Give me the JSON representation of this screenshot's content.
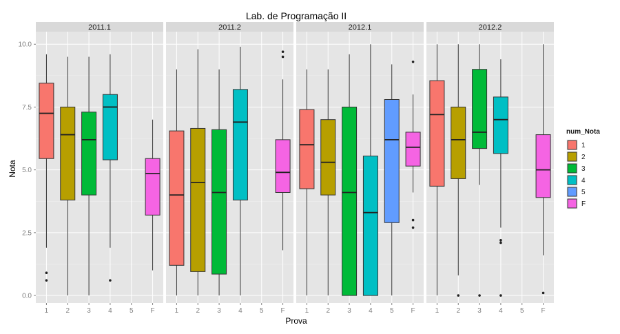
{
  "chart_data": {
    "type": "boxplot",
    "title": "Lab. de Programação II",
    "xlabel": "Prova",
    "ylabel": "Nota",
    "ylim": [
      -0.3,
      10.5
    ],
    "yticks": [
      "0.0",
      "2.5",
      "5.0",
      "7.5",
      "10.0"
    ],
    "ytick_values": [
      0,
      2.5,
      5,
      7.5,
      10
    ],
    "categories": [
      "1",
      "2",
      "3",
      "4",
      "5",
      "F"
    ],
    "grid": true,
    "legend": {
      "title": "num_Nota",
      "placement": "right",
      "entries": [
        "1",
        "2",
        "3",
        "4",
        "5",
        "F"
      ]
    },
    "colors": {
      "1": "#F8766D",
      "2": "#B79F00",
      "3": "#00BA38",
      "4": "#00BFC4",
      "5": "#619CFF",
      "F": "#F564E3"
    },
    "facets": [
      {
        "label": "2011.1",
        "boxes": [
          {
            "cat": "1",
            "min": 1.9,
            "q1": 5.45,
            "median": 7.25,
            "q3": 8.45,
            "max": 9.6,
            "outliers": [
              0.9,
              0.6
            ]
          },
          {
            "cat": "2",
            "min": 0.0,
            "q1": 3.8,
            "median": 6.4,
            "q3": 7.5,
            "max": 9.5,
            "outliers": []
          },
          {
            "cat": "3",
            "min": 0.0,
            "q1": 4.0,
            "median": 6.2,
            "q3": 7.3,
            "max": 9.5,
            "outliers": []
          },
          {
            "cat": "4",
            "min": 1.9,
            "q1": 5.4,
            "median": 7.5,
            "q3": 8.0,
            "max": 9.6,
            "outliers": [
              0.6
            ]
          },
          {
            "cat": "F",
            "min": 1.0,
            "q1": 3.2,
            "median": 4.85,
            "q3": 5.45,
            "max": 7.0,
            "outliers": []
          }
        ]
      },
      {
        "label": "2011.2",
        "boxes": [
          {
            "cat": "1",
            "min": 0.0,
            "q1": 1.2,
            "median": 4.0,
            "q3": 6.55,
            "max": 9.0,
            "outliers": []
          },
          {
            "cat": "2",
            "min": 0.0,
            "q1": 0.95,
            "median": 4.5,
            "q3": 6.65,
            "max": 9.8,
            "outliers": []
          },
          {
            "cat": "3",
            "min": 0.0,
            "q1": 0.85,
            "median": 4.1,
            "q3": 6.6,
            "max": 9.0,
            "outliers": []
          },
          {
            "cat": "4",
            "min": 0.0,
            "q1": 3.8,
            "median": 6.9,
            "q3": 8.2,
            "max": 9.9,
            "outliers": []
          },
          {
            "cat": "F",
            "min": 1.8,
            "q1": 4.1,
            "median": 4.9,
            "q3": 6.2,
            "max": 8.6,
            "outliers": [
              9.7,
              9.5
            ]
          }
        ]
      },
      {
        "label": "2012.1",
        "boxes": [
          {
            "cat": "1",
            "min": 0.0,
            "q1": 4.25,
            "median": 6.0,
            "q3": 7.4,
            "max": 9.0,
            "outliers": []
          },
          {
            "cat": "2",
            "min": 0.0,
            "q1": 4.0,
            "median": 5.3,
            "q3": 7.0,
            "max": 9.0,
            "outliers": []
          },
          {
            "cat": "3",
            "min": 0.0,
            "q1": 0.0,
            "median": 4.1,
            "q3": 7.5,
            "max": 9.6,
            "outliers": []
          },
          {
            "cat": "4",
            "min": 0.0,
            "q1": 0.0,
            "median": 3.3,
            "q3": 5.55,
            "max": 10.0,
            "outliers": []
          },
          {
            "cat": "5",
            "min": 0.0,
            "q1": 2.9,
            "median": 6.2,
            "q3": 7.8,
            "max": 9.2,
            "outliers": []
          },
          {
            "cat": "F",
            "min": 4.1,
            "q1": 5.15,
            "median": 5.9,
            "q3": 6.5,
            "max": 8.0,
            "outliers": [
              9.3,
              3.0,
              2.7
            ]
          }
        ]
      },
      {
        "label": "2012.2",
        "boxes": [
          {
            "cat": "1",
            "min": 0.0,
            "q1": 4.35,
            "median": 7.2,
            "q3": 8.55,
            "max": 10.0,
            "outliers": []
          },
          {
            "cat": "2",
            "min": 0.8,
            "q1": 4.65,
            "median": 6.2,
            "q3": 7.5,
            "max": 10.0,
            "outliers": [
              0.0
            ]
          },
          {
            "cat": "3",
            "min": 4.4,
            "q1": 5.85,
            "median": 6.5,
            "q3": 9.0,
            "max": 10.0,
            "outliers": [
              0.0
            ]
          },
          {
            "cat": "4",
            "min": 2.7,
            "q1": 5.65,
            "median": 7.0,
            "q3": 7.9,
            "max": 9.4,
            "outliers": [
              2.2,
              2.1,
              0.0
            ]
          },
          {
            "cat": "F",
            "min": 1.6,
            "q1": 3.9,
            "median": 5.0,
            "q3": 6.4,
            "max": 10.0,
            "outliers": [
              0.1
            ]
          }
        ]
      }
    ]
  }
}
